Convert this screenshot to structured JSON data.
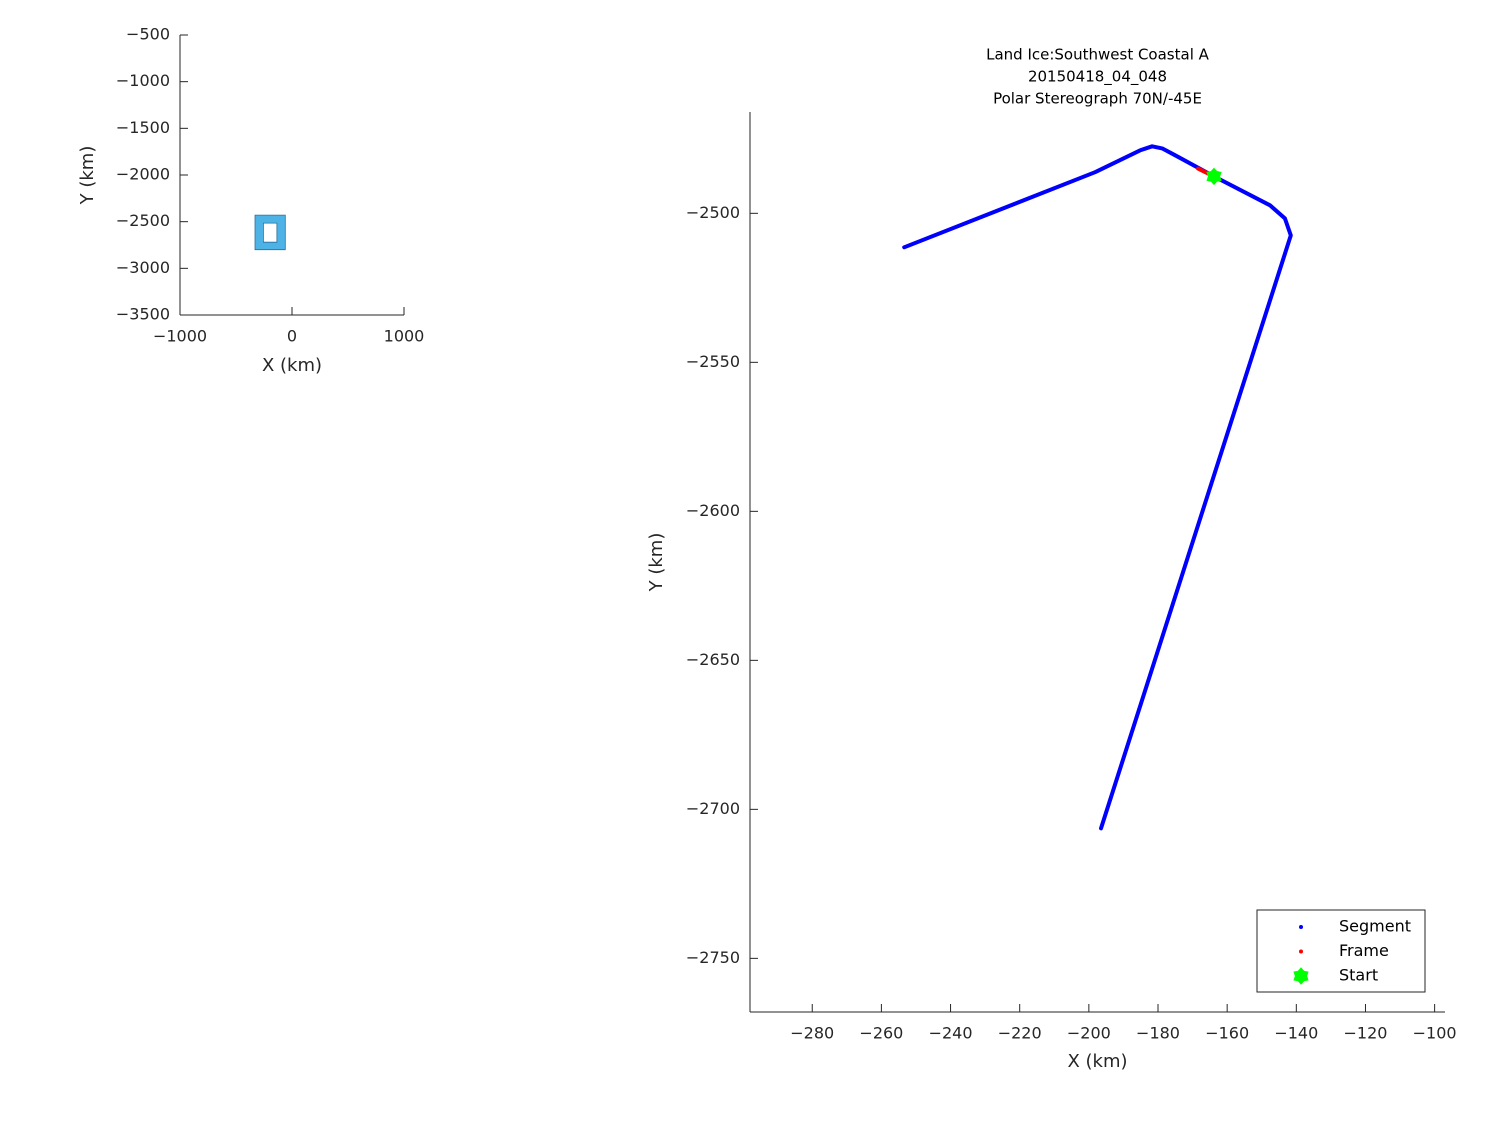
{
  "chart_data": [
    {
      "type": "polygon",
      "xlabel": "X (km)",
      "ylabel": "Y (km)",
      "xlim": [
        -1000,
        1000
      ],
      "ylim": [
        -3500,
        -500
      ],
      "xticks": [
        {
          "value": -1000,
          "label": "−1000"
        },
        0,
        1000
      ],
      "yticks": [
        {
          "value": -500,
          "label": "−500"
        },
        {
          "value": -1000,
          "label": "−1000"
        },
        {
          "value": -1500,
          "label": "−1500"
        },
        {
          "value": -2000,
          "label": "−2000"
        },
        {
          "value": -2500,
          "label": "−2500"
        },
        {
          "value": -3000,
          "label": "−3000"
        },
        {
          "value": -3500,
          "label": "−3500"
        }
      ],
      "series": [
        {
          "color": "#4db3e6",
          "x": [
            -330,
            -60,
            -60,
            -330,
            null,
            -255,
            -135,
            -135,
            -255
          ],
          "y": [
            -2430,
            -2430,
            -2800,
            -2800,
            null,
            -2515,
            -2515,
            -2720,
            -2720
          ]
        }
      ]
    },
    {
      "type": "line",
      "title": [
        "Land Ice:Southwest Coastal A",
        "20150418_04_048",
        "Polar Stereograph 70N/-45E"
      ],
      "xlabel": "X (km)",
      "ylabel": "Y (km)",
      "xlim": [
        -298,
        -97
      ],
      "ylim": [
        -2768,
        -2466
      ],
      "xticks": [
        {
          "value": -280,
          "label": "−280"
        },
        {
          "value": -260,
          "label": "−260"
        },
        {
          "value": -240,
          "label": "−240"
        },
        {
          "value": -220,
          "label": "−220"
        },
        {
          "value": -200,
          "label": "−200"
        },
        {
          "value": -180,
          "label": "−180"
        },
        {
          "value": -160,
          "label": "−160"
        },
        {
          "value": -140,
          "label": "−140"
        },
        {
          "value": -120,
          "label": "−120"
        },
        {
          "value": -100,
          "label": "−100"
        }
      ],
      "yticks": [
        {
          "value": -2500,
          "label": "−2500"
        },
        {
          "value": -2550,
          "label": "−2550"
        },
        {
          "value": -2600,
          "label": "−2600"
        },
        {
          "value": -2650,
          "label": "−2650"
        },
        {
          "value": -2700,
          "label": "−2700"
        },
        {
          "value": -2750,
          "label": "−2750"
        }
      ],
      "legend": "southeast",
      "series": [
        {
          "name": "Segment",
          "color": "#0000ff",
          "marker": "dot",
          "x": [
            -253.4,
            -198.2,
            -185.2,
            -181.7,
            -178.8,
            -175.1,
            -163.8,
            -147.6,
            -143.3,
            -141.6,
            -196.5
          ],
          "y": [
            -2511.4,
            -2486.2,
            -2478.9,
            -2477.5,
            -2478.2,
            -2480.5,
            -2487.6,
            -2497.3,
            -2501.7,
            -2507.4,
            -2706.4
          ]
        },
        {
          "name": "Frame",
          "color": "#ff0000",
          "marker": "dot",
          "x": [
            -168.4,
            -164.9
          ],
          "y": [
            -2485.0,
            -2487.0
          ]
        },
        {
          "name": "Start",
          "color": "#00ff00",
          "marker": "star",
          "x": [
            -163.8
          ],
          "y": [
            -2487.6
          ]
        }
      ]
    }
  ]
}
